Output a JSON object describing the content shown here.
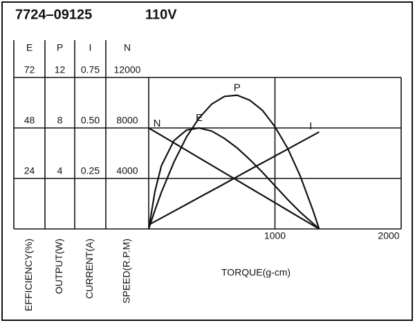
{
  "chart_data": {
    "type": "line",
    "title": "7724–09125",
    "subtitle": "110V",
    "x_label": "TORQUE(g-cm)",
    "xlim": [
      0,
      2000
    ],
    "xticks": [
      1000,
      2000
    ],
    "axes": [
      {
        "name": "E",
        "label": "EFFICIENCY(%)",
        "ylim": [
          0,
          72
        ],
        "yticks": [
          24,
          48,
          72
        ]
      },
      {
        "name": "P",
        "label": "OUTPUT(W)",
        "ylim": [
          0,
          12
        ],
        "yticks": [
          4,
          8,
          12
        ]
      },
      {
        "name": "I",
        "label": "CURRENT(A)",
        "ylim": [
          0,
          0.75
        ],
        "yticks": [
          0.25,
          {
            "value": 0.5,
            "label": "0.50"
          },
          0.75
        ]
      },
      {
        "name": "N",
        "label": "SPEED(R.P.M)",
        "ylim": [
          0,
          12000
        ],
        "yticks": [
          4000,
          8000,
          12000
        ]
      }
    ],
    "x": [
      0,
      50,
      100,
      200,
      300,
      400,
      500,
      600,
      700,
      800,
      900,
      1000,
      1100,
      1200,
      1300,
      1350
    ],
    "series": [
      {
        "name": "N",
        "axis": 3,
        "color": "#111111",
        "values": [
          8000,
          7704,
          7407,
          6815,
          6222,
          5630,
          5037,
          4444,
          3852,
          3259,
          2667,
          2074,
          1481,
          889,
          296,
          0
        ]
      },
      {
        "name": "E",
        "axis": 0,
        "color": "#111111",
        "values": [
          0,
          18,
          30,
          42,
          47,
          48,
          46.5,
          43,
          38.5,
          33,
          27,
          20.5,
          14,
          8,
          2.7,
          0
        ]
      },
      {
        "name": "P",
        "axis": 1,
        "color": "#111111",
        "values": [
          0,
          1.5,
          2.9,
          5.3,
          7.3,
          8.8,
          9.9,
          10.5,
          10.6,
          10.2,
          9.4,
          8.1,
          6.4,
          4.2,
          1.5,
          0
        ]
      },
      {
        "name": "I",
        "axis": 2,
        "color": "#111111",
        "values": [
          0.02,
          0.037,
          0.054,
          0.088,
          0.122,
          0.156,
          0.19,
          0.224,
          0.259,
          0.293,
          0.327,
          0.361,
          0.395,
          0.429,
          0.463,
          0.48
        ]
      }
    ]
  }
}
